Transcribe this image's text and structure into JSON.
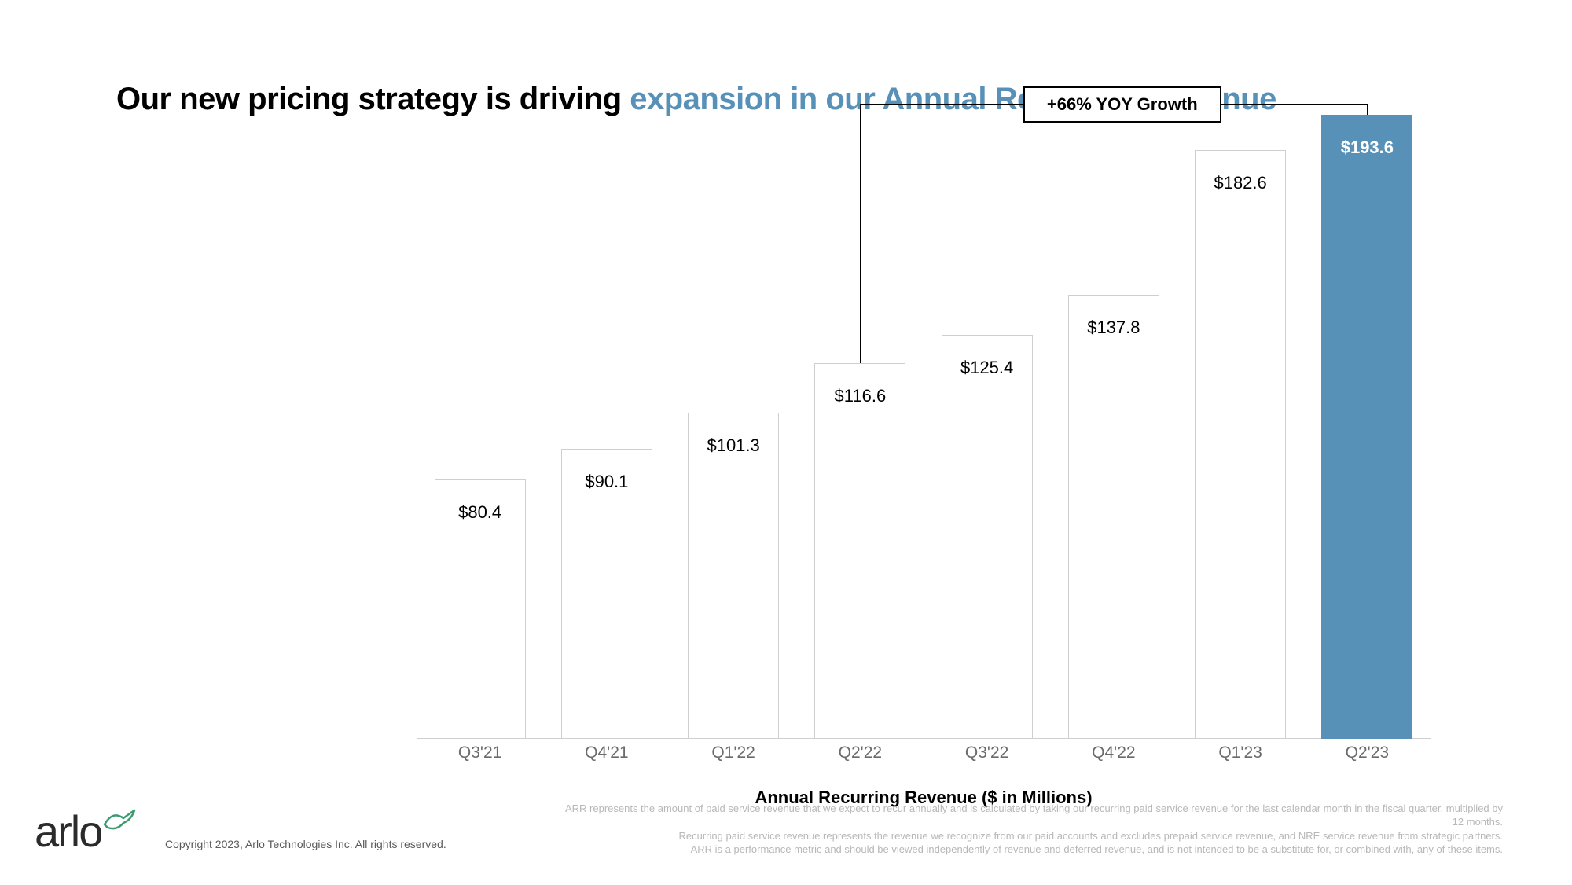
{
  "headline": {
    "part1": "Our new pricing strategy is driving ",
    "part2_accent": "expansion in our Annual Recurring Revenue"
  },
  "chart": {
    "type": "bar",
    "axis_title": "Annual Recurring Revenue ($ in Millions)",
    "growth_callout": "+66% YOY Growth",
    "ylim_max": 200,
    "bar_border_color": "#cfcfcf",
    "bar_fill_color": "#ffffff",
    "highlight_color": "#5891b8",
    "background_color": "#ffffff",
    "label_fontsize": 22,
    "xlabel_fontsize": 21,
    "xlabel_color": "#6b6b6b",
    "bars": [
      {
        "category": "Q3'21",
        "value": 80.4,
        "label": "$80.4",
        "highlight": false
      },
      {
        "category": "Q4'21",
        "value": 90.1,
        "label": "$90.1",
        "highlight": false
      },
      {
        "category": "Q1'22",
        "value": 101.3,
        "label": "$101.3",
        "highlight": false
      },
      {
        "category": "Q2'22",
        "value": 116.6,
        "label": "$116.6",
        "highlight": false
      },
      {
        "category": "Q3'22",
        "value": 125.4,
        "label": "$125.4",
        "highlight": false
      },
      {
        "category": "Q4'22",
        "value": 137.8,
        "label": "$137.8",
        "highlight": false
      },
      {
        "category": "Q1'23",
        "value": 182.6,
        "label": "$182.6",
        "highlight": false
      },
      {
        "category": "Q2'23",
        "value": 193.6,
        "label": "$193.6",
        "highlight": true
      }
    ],
    "bracket": {
      "from_index": 3,
      "to_index": 7
    }
  },
  "footer": {
    "logo_text": "arlo",
    "copyright": "Copyright 2023, Arlo Technologies Inc. All rights reserved.",
    "footnote_line1": "ARR represents the amount of paid service revenue that we expect to recur annually and is calculated by taking our recurring paid service revenue for the last calendar month in the fiscal quarter, multiplied by 12 months.",
    "footnote_line2": "Recurring paid service revenue represents the revenue we recognize from our paid accounts and excludes prepaid service revenue, and NRE service revenue from strategic partners.",
    "footnote_line3": "ARR is a performance metric and should be viewed independently of revenue and deferred revenue, and is not intended to be a substitute for, or combined with, any of these items."
  },
  "colors": {
    "accent": "#5891b8",
    "text": "#000000",
    "muted": "#6b6b6b",
    "footnote": "#b8b8b8"
  }
}
